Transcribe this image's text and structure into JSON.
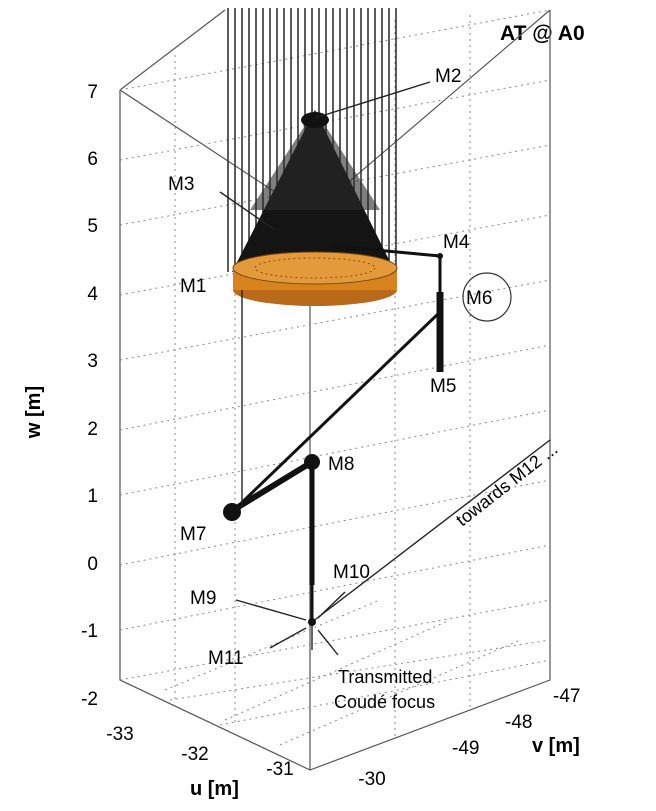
{
  "title": "AT @ A0",
  "axes": {
    "w_label": "w [m]",
    "u_label": "u [m]",
    "v_label": "v [m]",
    "w_ticks": [
      "7",
      "6",
      "5",
      "4",
      "3",
      "2",
      "1",
      "0",
      "-1",
      "-2"
    ],
    "u_ticks": [
      "-33",
      "-32",
      "-31",
      "-30"
    ],
    "v_ticks": [
      "-47",
      "-48",
      "-49"
    ]
  },
  "mirrors": {
    "m1": "M1",
    "m2": "M2",
    "m3": "M3",
    "m4": "M4",
    "m5": "M5",
    "m6": "M6",
    "m7": "M7",
    "m8": "M8",
    "m9": "M9",
    "m10": "M10",
    "m11": "M11"
  },
  "annotations": {
    "towards": "towards M12 ...",
    "focus_line1": "Transmitted",
    "focus_line2": "Coudé focus"
  },
  "colors": {
    "primary_mirror": "#d8841e",
    "beam": "#111111",
    "grid": "#888888"
  }
}
